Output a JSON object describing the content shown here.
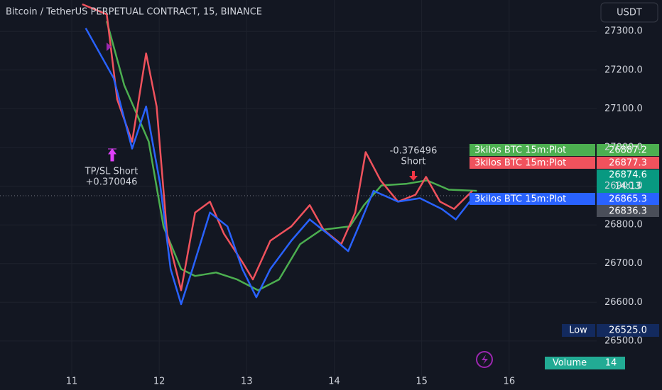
{
  "header": {
    "title": "Bitcoin / TetherUS PERPETUAL CONTRACT, 15, BINANCE",
    "currency": "USDT"
  },
  "chart_data": {
    "type": "line",
    "xlim": [
      10.18,
      17.0
    ],
    "ylim": [
      26410,
      27381
    ],
    "xticks": [
      11,
      12,
      13,
      14,
      15,
      16
    ],
    "yticks": [
      {
        "value": 26500,
        "label": "26500.0"
      },
      {
        "value": 26600,
        "label": "26600.0"
      },
      {
        "value": 26700,
        "label": "26700.0"
      },
      {
        "value": 26800,
        "label": "26800.0"
      },
      {
        "value": 26900,
        "label": "26900.0"
      },
      {
        "value": 27000,
        "label": "27000.0"
      },
      {
        "value": 27100,
        "label": "27100.0"
      },
      {
        "value": 27200,
        "label": "27200.0"
      },
      {
        "value": 27300,
        "label": "27300.0"
      }
    ],
    "grid": true,
    "series": [
      {
        "color": "#4caf50",
        "x": [
          11.4,
          11.6,
          11.88,
          12.05,
          12.25,
          12.41,
          12.65,
          12.89,
          13.13,
          13.37,
          13.61,
          13.85,
          14.18,
          14.34,
          14.54,
          14.82,
          15.06,
          15.31,
          15.63
        ],
        "values": [
          27326,
          27161,
          27015,
          26795,
          26686,
          26668,
          26677,
          26659,
          26631,
          26659,
          26750,
          26787,
          26796,
          26851,
          26902,
          26906,
          26915,
          26891,
          26888
        ]
      },
      {
        "color": "#f0525d",
        "x": [
          11.12,
          11.4,
          11.52,
          11.69,
          11.85,
          11.97,
          12.09,
          12.25,
          12.41,
          12.58,
          12.74,
          12.95,
          13.07,
          13.27,
          13.51,
          13.72,
          13.88,
          14.08,
          14.24,
          14.36,
          14.53,
          14.73,
          14.93,
          15.05,
          15.21,
          15.37,
          15.58
        ],
        "values": [
          27370,
          27344,
          27124,
          27015,
          27243,
          27106,
          26777,
          26631,
          26832,
          26860,
          26777,
          26704,
          26659,
          26759,
          26796,
          26851,
          26787,
          26750,
          26832,
          26988,
          26915,
          26860,
          26878,
          26924,
          26860,
          26841,
          26888
        ]
      },
      {
        "color": "#2962ff",
        "x": [
          11.16,
          11.48,
          11.69,
          11.85,
          12.01,
          12.13,
          12.25,
          12.38,
          12.58,
          12.78,
          12.95,
          13.11,
          13.27,
          13.51,
          13.72,
          13.92,
          14.16,
          14.28,
          14.45,
          14.73,
          14.98,
          15.23,
          15.39,
          15.55
        ],
        "values": [
          27308,
          27179,
          26997,
          27106,
          26906,
          26686,
          26595,
          26686,
          26832,
          26796,
          26686,
          26613,
          26686,
          26759,
          26814,
          26778,
          26732,
          26796,
          26888,
          26860,
          26869,
          26841,
          26814,
          26860
        ]
      }
    ]
  },
  "annotations": {
    "tp_sl": "TP/SL Short",
    "tp_sl_value": "+0.370046",
    "short_value": "-0.376496",
    "short": "Short"
  },
  "price_tags": {
    "green_name": "3kilos BTC 15m:Plot",
    "green_price": "26887.2",
    "red_name": "3kilos BTC 15m:Plot",
    "red_price": "26877.3",
    "last_price": "26874.6",
    "countdown": "14:13",
    "blue_name": "3kilos BTC 15m:Plot",
    "blue_price": "26865.3",
    "gray_price": "26836.3",
    "low_name": "Low",
    "low_price": "26525.0",
    "volume_name": "Volume",
    "volume_value": "14"
  }
}
